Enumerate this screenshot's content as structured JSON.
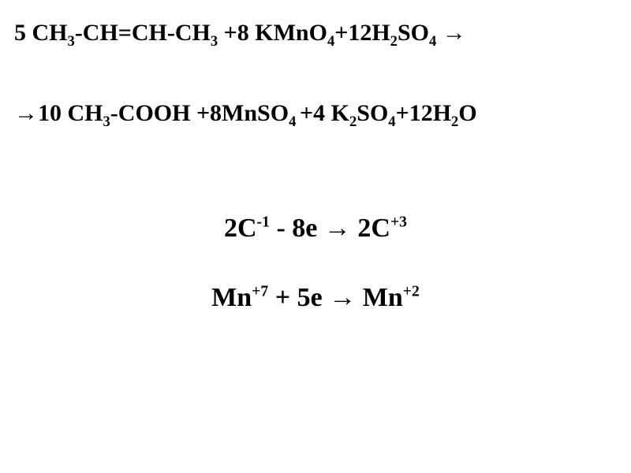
{
  "equation": {
    "line1": {
      "a": "5 CH",
      "b": "3",
      "c": "-CH=CH-CH",
      "d": "3",
      "e": " +8 KMnO",
      "f": "4",
      "g": "+12H",
      "h": "2",
      "i": "SO",
      "j": "4",
      "k": "  ",
      "l": "→"
    },
    "line2": {
      "a": "→",
      "b": "10 CH",
      "c": "3",
      "d": "-COOH +8MnSO",
      "e": "4 ",
      "f": "+4 K",
      "g": "2",
      "h": "SO",
      "i": "4",
      "j": "+12H",
      "k": "2",
      "l": "O"
    }
  },
  "halfReactions": {
    "carbon": {
      "a": "2C",
      "b": "-1",
      "c": " - 8e  ",
      "d": "→",
      "e": " 2C",
      "f": "+3"
    },
    "manganese": {
      "a": "Mn",
      "b": "+7",
      "c": " + 5e  ",
      "d": "→",
      "e": " Mn",
      "f": "+2"
    }
  },
  "style": {
    "background": "#ffffff",
    "text_color": "#000000",
    "font_family": "Times New Roman",
    "font_weight": "bold",
    "line1_fontsize": 30,
    "line2_fontsize": 30,
    "halfreaction_fontsize": 34
  }
}
